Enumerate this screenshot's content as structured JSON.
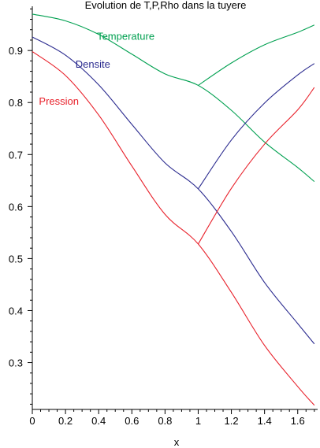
{
  "chart_data": {
    "type": "line",
    "title": "Evolution de T,P,Rho dans la tuyere",
    "xlabel": "x",
    "ylabel": "",
    "xlim": [
      0,
      1.72
    ],
    "ylim": [
      0.21,
      0.985
    ],
    "x_ticks": [
      "0",
      "0.2",
      "0.4",
      "0.6",
      "0.8",
      "1",
      "1.2",
      "1.4",
      "1.6"
    ],
    "y_ticks": [
      "0.3",
      "0.4",
      "0.5",
      "0.6",
      "0.7",
      "0.8",
      "0.9"
    ],
    "grid": false,
    "legend": "none",
    "annotations": [
      {
        "text": "Temperature",
        "series": "temperature",
        "color": "#00a050"
      },
      {
        "text": "Densite",
        "series": "densite",
        "color": "#2b2b8f"
      },
      {
        "text": "Pression",
        "series": "pression",
        "color": "#e8202a"
      }
    ],
    "series": [
      {
        "name": "Temperature",
        "key": "temperature",
        "color": "#00a050",
        "segments": [
          {
            "x": [
              0,
              0.2,
              0.4,
              0.6,
              0.8,
              1.0,
              1.2,
              1.4,
              1.6,
              1.7
            ],
            "y": [
              0.97,
              0.957,
              0.931,
              0.893,
              0.855,
              0.833,
              0.785,
              0.724,
              0.675,
              0.648
            ]
          },
          {
            "x": [
              1.0,
              1.2,
              1.4,
              1.6,
              1.7
            ],
            "y": [
              0.833,
              0.876,
              0.911,
              0.935,
              0.949
            ]
          }
        ]
      },
      {
        "name": "Densite",
        "key": "densite",
        "color": "#2b2b8f",
        "segments": [
          {
            "x": [
              0,
              0.2,
              0.4,
              0.6,
              0.8,
              1.0,
              1.2,
              1.4,
              1.6,
              1.7
            ],
            "y": [
              0.926,
              0.891,
              0.834,
              0.758,
              0.684,
              0.634,
              0.552,
              0.454,
              0.375,
              0.336
            ]
          },
          {
            "x": [
              1.0,
              1.2,
              1.4,
              1.6,
              1.7
            ],
            "y": [
              0.634,
              0.728,
              0.799,
              0.853,
              0.875
            ]
          }
        ]
      },
      {
        "name": "Pression",
        "key": "pression",
        "color": "#e8202a",
        "segments": [
          {
            "x": [
              0,
              0.2,
              0.4,
              0.6,
              0.8,
              1.0,
              1.2,
              1.4,
              1.6,
              1.7
            ],
            "y": [
              0.898,
              0.852,
              0.776,
              0.678,
              0.585,
              0.528,
              0.435,
              0.333,
              0.254,
              0.218
            ]
          },
          {
            "x": [
              1.0,
              1.2,
              1.4,
              1.6,
              1.7
            ],
            "y": [
              0.528,
              0.635,
              0.72,
              0.786,
              0.829
            ]
          }
        ]
      }
    ]
  }
}
